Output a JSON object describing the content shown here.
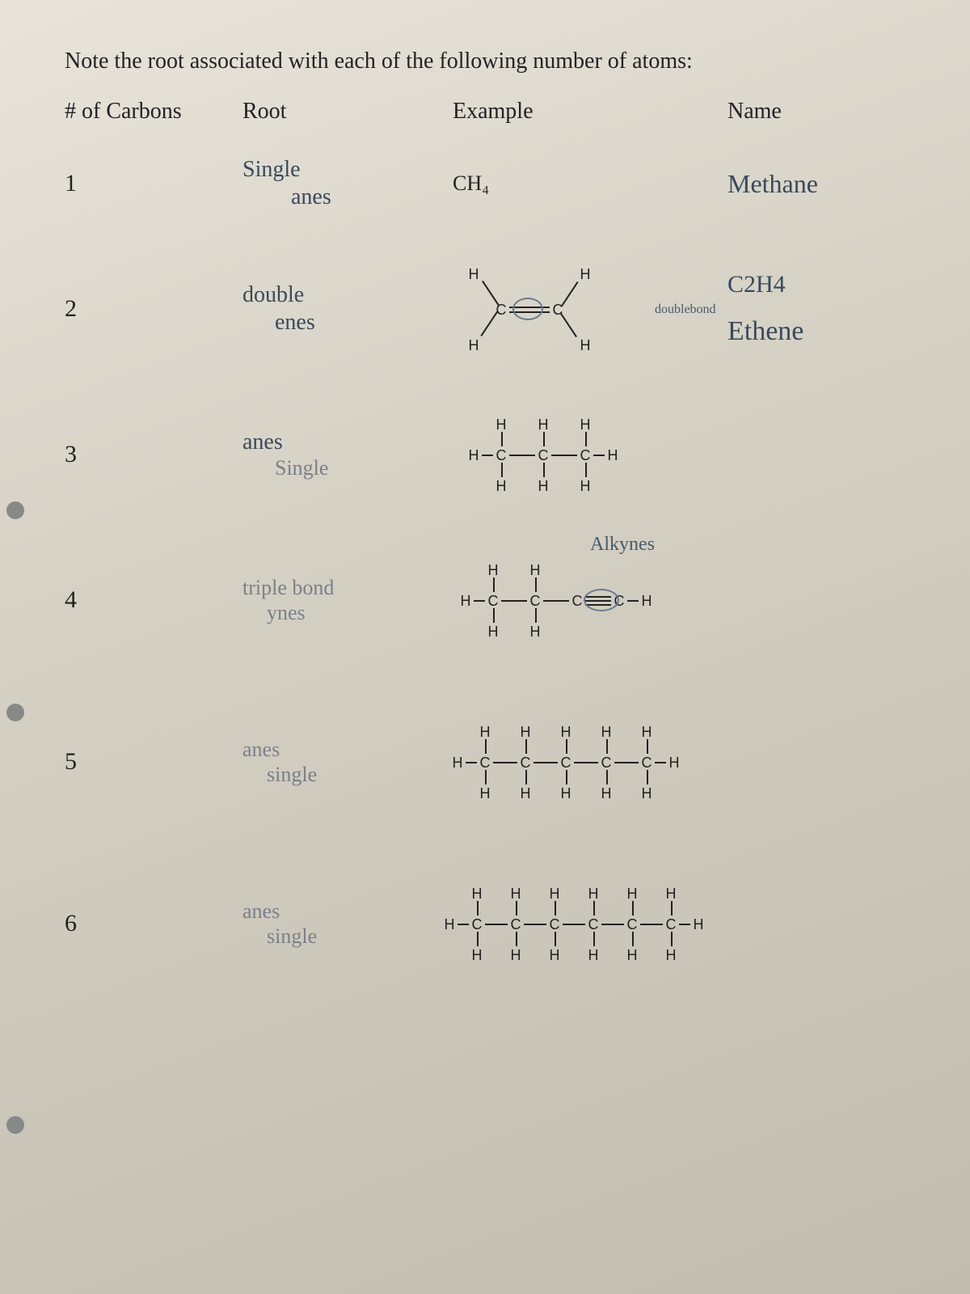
{
  "title": "Note the root associated with each of the following number of atoms:",
  "headers": {
    "c1": "# of Carbons",
    "c2": "Root",
    "c3": "Example",
    "c4": "Name"
  },
  "rows": [
    {
      "num": "1",
      "root_l1": "Single",
      "root_l2": "anes",
      "example_printed": "CH₄",
      "name_l1": "Methane"
    },
    {
      "num": "2",
      "root_l1": "double",
      "root_l2": "enes",
      "name_top": "C2H4",
      "name_mid": "doublebond",
      "name_bot": "Ethene"
    },
    {
      "num": "3",
      "root_l1": "anes",
      "root_l2": "Single"
    },
    {
      "num": "4",
      "root_l1": "triple bond",
      "root_l2": "ynes",
      "annot": "Alkynes"
    },
    {
      "num": "5",
      "root_l1": "anes",
      "root_l2": "single"
    },
    {
      "num": "6",
      "root_l1": "anes",
      "root_l2": "single"
    }
  ],
  "holes": [
    620,
    870,
    1380
  ],
  "colors": {
    "paper_light": "#e8e4da",
    "paper_dark": "#c0bcb0",
    "ink": "#222",
    "pencil": "#4a5a6a",
    "pencil_light": "#7a8088"
  },
  "chain": {
    "spacing": 48,
    "bond_len": 30,
    "v_bond_len": 22,
    "atom_font": 18
  }
}
